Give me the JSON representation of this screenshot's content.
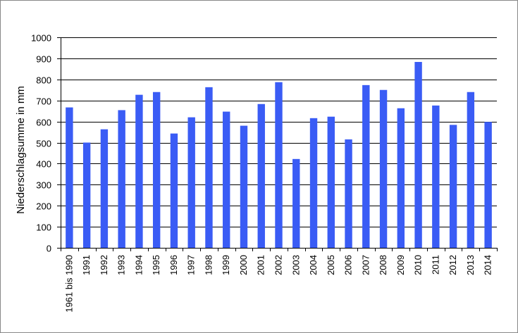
{
  "chart_data": {
    "type": "bar",
    "title": "",
    "xlabel": "",
    "ylabel": "Niederschlagsumme  in mm",
    "ylim": [
      0,
      1000
    ],
    "yticks": [
      0,
      100,
      200,
      300,
      400,
      500,
      600,
      700,
      800,
      900,
      1000
    ],
    "grid": true,
    "legend": "none",
    "bar_color": "#3A5CF5",
    "categories": [
      "1961 bis 1990",
      "1991",
      "1992",
      "1993",
      "1994",
      "1995",
      "1996",
      "1997",
      "1998",
      "1999",
      "2000",
      "2001",
      "2002",
      "2003",
      "2004",
      "2005",
      "2006",
      "2007",
      "2008",
      "2009",
      "2010",
      "2011",
      "2012",
      "2013",
      "2014"
    ],
    "values": [
      667,
      500,
      563,
      654,
      727,
      740,
      543,
      620,
      763,
      647,
      580,
      683,
      787,
      422,
      616,
      623,
      515,
      773,
      750,
      663,
      883,
      676,
      584,
      740,
      598
    ]
  }
}
